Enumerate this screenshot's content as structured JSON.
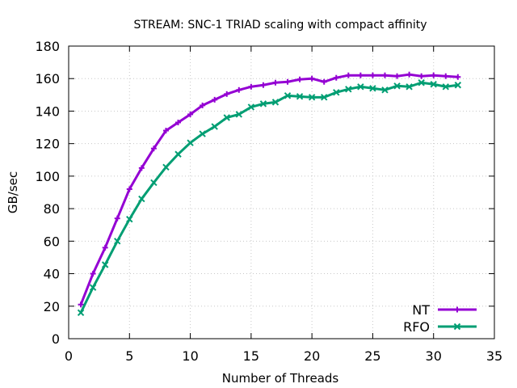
{
  "chart_data": {
    "type": "line",
    "title": "STREAM: SNC-1 TRIAD scaling with compact affinity",
    "xlabel": "Number of Threads",
    "ylabel": "GB/sec",
    "xlim": [
      0,
      35
    ],
    "ylim": [
      0,
      180
    ],
    "xticks": [
      "0",
      "5",
      "10",
      "15",
      "20",
      "25",
      "30",
      "35"
    ],
    "yticks": [
      "0",
      "20",
      "40",
      "60",
      "80",
      "100",
      "120",
      "140",
      "160",
      "180"
    ],
    "grid": true,
    "legend_position": "bottom-right",
    "x": [
      1,
      2,
      3,
      4,
      5,
      6,
      7,
      8,
      9,
      10,
      11,
      12,
      13,
      14,
      15,
      16,
      17,
      18,
      19,
      20,
      21,
      22,
      23,
      24,
      25,
      26,
      27,
      28,
      29,
      30,
      31,
      32
    ],
    "series": [
      {
        "name": "NT",
        "color": "#9400d3",
        "marker": "plus",
        "values": [
          21,
          40,
          56,
          74,
          92,
          105,
          117,
          128,
          133,
          138,
          143.5,
          147,
          150.5,
          153,
          155,
          156,
          157.5,
          158,
          159.5,
          160,
          158,
          160.5,
          162,
          162,
          162,
          162,
          161.5,
          162.5,
          161.5,
          162,
          161.5,
          161
        ]
      },
      {
        "name": "RFO",
        "color": "#009e73",
        "marker": "cross",
        "values": [
          16,
          31.5,
          45.5,
          60,
          73.5,
          86,
          96,
          105.5,
          113.5,
          120.5,
          126,
          130.5,
          136,
          138,
          142.5,
          144.5,
          145.5,
          149.5,
          149,
          148.5,
          148.5,
          151.5,
          153.5,
          155,
          154,
          153,
          155.5,
          155,
          157.5,
          156.5,
          155,
          156
        ]
      }
    ]
  }
}
